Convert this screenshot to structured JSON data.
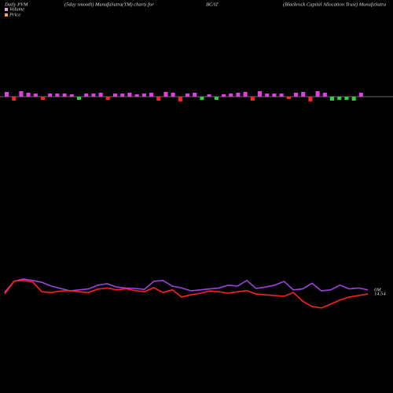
{
  "chart_data": [
    {
      "type": "bar",
      "title": "Daily PVM",
      "subtitle": "(5day smooth) MunafaSutra(TM) charts for",
      "ticker": "BCAT",
      "company": "(Blackrock Capital Allocation Trust) MunafaSutra",
      "values": [
        6,
        -5,
        7,
        5,
        4,
        -4,
        4,
        4,
        4,
        3,
        -4,
        4,
        4,
        5,
        -4,
        4,
        4,
        5,
        3,
        4,
        5,
        -5,
        6,
        5,
        -6,
        4,
        5,
        -4,
        3,
        -4,
        3,
        4,
        5,
        6,
        -5,
        7,
        4,
        4,
        4,
        -3,
        5,
        6,
        -6,
        7,
        5,
        -5,
        -4,
        -4,
        -5,
        5
      ],
      "colors": [
        "#e040e0",
        "#ff2030",
        "#e040e0",
        "#e040e0",
        "#e040e0",
        "#ff2030",
        "#e040e0",
        "#e040e0",
        "#e040e0",
        "#e040e0",
        "#30d040",
        "#e040e0",
        "#e040e0",
        "#e040e0",
        "#ff2030",
        "#e040e0",
        "#e040e0",
        "#e040e0",
        "#e040e0",
        "#e040e0",
        "#e040e0",
        "#ff2030",
        "#e040e0",
        "#e040e0",
        "#ff2030",
        "#e040e0",
        "#e040e0",
        "#30d040",
        "#e040e0",
        "#30d040",
        "#e040e0",
        "#e040e0",
        "#e040e0",
        "#e040e0",
        "#ff2030",
        "#e040e0",
        "#e040e0",
        "#e040e0",
        "#e040e0",
        "#ff2030",
        "#e040e0",
        "#e040e0",
        "#ff2030",
        "#e040e0",
        "#e040e0",
        "#30d040",
        "#30d040",
        "#30d040",
        "#30d040",
        "#e040e0"
      ],
      "ylim": [
        -10,
        10
      ]
    },
    {
      "type": "line",
      "series": [
        {
          "name": "Volume",
          "color": "#a040e0",
          "end_label": "0M",
          "ylim": [
            0,
            100
          ],
          "values": [
            47,
            70,
            75,
            72,
            68,
            60,
            55,
            50,
            52,
            54,
            62,
            65,
            58,
            56,
            55,
            53,
            70,
            72,
            60,
            56,
            50,
            52,
            54,
            56,
            62,
            60,
            72,
            55,
            58,
            62,
            70,
            52,
            54,
            66,
            50,
            52,
            62,
            54,
            56,
            52
          ]
        },
        {
          "name": "Price",
          "color": "#ff2020",
          "end_label": "14.54",
          "ylim": [
            14.0,
            15.25
          ],
          "values": [
            14.54,
            14.88,
            14.9,
            14.86,
            14.6,
            14.58,
            14.62,
            14.63,
            14.6,
            14.58,
            14.67,
            14.7,
            14.65,
            14.68,
            14.63,
            14.6,
            14.71,
            14.58,
            14.65,
            14.46,
            14.52,
            14.56,
            14.62,
            14.6,
            14.56,
            14.6,
            14.63,
            14.54,
            14.52,
            14.5,
            14.48,
            14.58,
            14.35,
            14.21,
            14.17,
            14.27,
            14.38,
            14.46,
            14.5,
            14.54
          ]
        }
      ]
    }
  ]
}
